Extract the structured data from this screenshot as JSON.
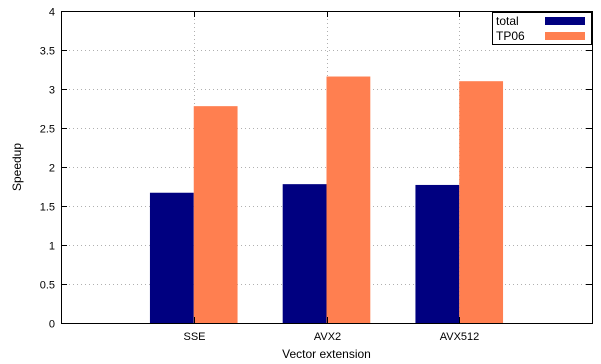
{
  "chart_data": {
    "type": "bar",
    "categories": [
      "SSE",
      "AVX2",
      "AVX512"
    ],
    "series": [
      {
        "name": "total",
        "values": [
          1.67,
          1.78,
          1.77
        ],
        "color": "#000080"
      },
      {
        "name": "TP06",
        "values": [
          2.78,
          3.16,
          3.1
        ],
        "color": "#ff7f50"
      }
    ],
    "xlabel": "Vector extension",
    "ylabel": "Speedup",
    "ylim": [
      0,
      4
    ],
    "yticks": [
      {
        "value": 0,
        "label": "0"
      },
      {
        "value": 0.5,
        "label": "0.5"
      },
      {
        "value": 1,
        "label": "1"
      },
      {
        "value": 1.5,
        "label": "1.5"
      },
      {
        "value": 2,
        "label": "2"
      },
      {
        "value": 2.5,
        "label": "2.5"
      },
      {
        "value": 3,
        "label": "3"
      },
      {
        "value": 3.5,
        "label": "3.5"
      },
      {
        "value": 4,
        "label": "4"
      }
    ],
    "grid": true,
    "legend_position": "top-right"
  }
}
